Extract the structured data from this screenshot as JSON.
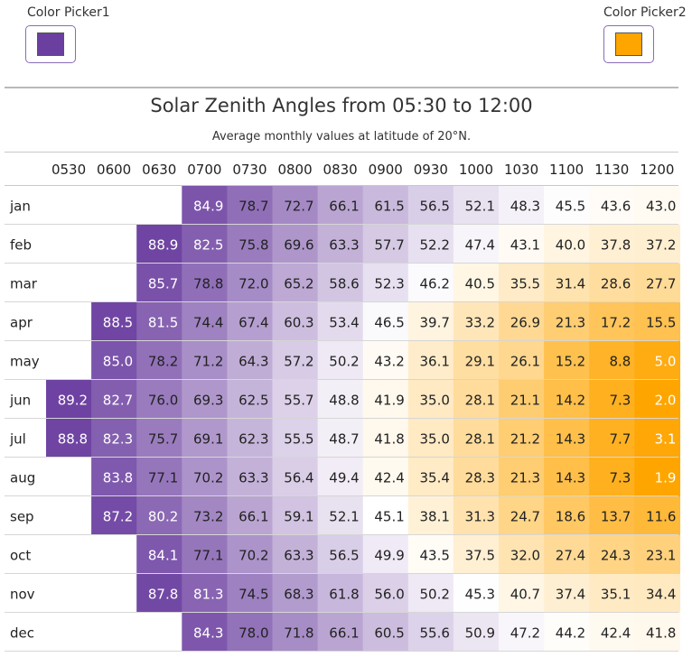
{
  "pickers": {
    "picker1": {
      "label": "Color Picker1",
      "color": "#6b3fa0"
    },
    "picker2": {
      "label": "Color Picker2",
      "color": "#ffa500"
    }
  },
  "chart_data": {
    "type": "heatmap",
    "title": "Solar Zenith Angles from 05:30 to 12:00",
    "subtitle": "Average monthly values at latitude of 20°N.",
    "columns": [
      "0530",
      "0600",
      "0630",
      "0700",
      "0730",
      "0800",
      "0830",
      "0900",
      "0930",
      "1000",
      "1030",
      "1100",
      "1130",
      "1200"
    ],
    "rows": [
      "jan",
      "feb",
      "mar",
      "apr",
      "may",
      "jun",
      "jul",
      "aug",
      "sep",
      "oct",
      "nov",
      "dec"
    ],
    "values": [
      [
        null,
        null,
        null,
        84.9,
        78.7,
        72.7,
        66.1,
        61.5,
        56.5,
        52.1,
        48.3,
        45.5,
        43.6,
        43.0
      ],
      [
        null,
        null,
        88.9,
        82.5,
        75.8,
        69.6,
        63.3,
        57.7,
        52.2,
        47.4,
        43.1,
        40.0,
        37.8,
        37.2
      ],
      [
        null,
        null,
        85.7,
        78.8,
        72.0,
        65.2,
        58.6,
        52.3,
        46.2,
        40.5,
        35.5,
        31.4,
        28.6,
        27.7
      ],
      [
        null,
        88.5,
        81.5,
        74.4,
        67.4,
        60.3,
        53.4,
        46.5,
        39.7,
        33.2,
        26.9,
        21.3,
        17.2,
        15.5
      ],
      [
        null,
        85.0,
        78.2,
        71.2,
        64.3,
        57.2,
        50.2,
        43.2,
        36.1,
        29.1,
        26.1,
        15.2,
        8.8,
        5.0
      ],
      [
        89.2,
        82.7,
        76.0,
        69.3,
        62.5,
        55.7,
        48.8,
        41.9,
        35.0,
        28.1,
        21.1,
        14.2,
        7.3,
        2.0
      ],
      [
        88.8,
        82.3,
        75.7,
        69.1,
        62.3,
        55.5,
        48.7,
        41.8,
        35.0,
        28.1,
        21.2,
        14.3,
        7.7,
        3.1
      ],
      [
        null,
        83.8,
        77.1,
        70.2,
        63.3,
        56.4,
        49.4,
        42.4,
        35.4,
        28.3,
        21.3,
        14.3,
        7.3,
        1.9
      ],
      [
        null,
        87.2,
        80.2,
        73.2,
        66.1,
        59.1,
        52.1,
        45.1,
        38.1,
        31.3,
        24.7,
        18.6,
        13.7,
        11.6
      ],
      [
        null,
        null,
        84.1,
        77.1,
        70.2,
        63.3,
        56.5,
        49.9,
        43.5,
        37.5,
        32.0,
        27.4,
        24.3,
        23.1
      ],
      [
        null,
        null,
        87.8,
        81.3,
        74.5,
        68.3,
        61.8,
        56.0,
        50.2,
        45.3,
        40.7,
        37.4,
        35.1,
        34.4
      ],
      [
        null,
        null,
        null,
        84.3,
        78.0,
        71.8,
        66.1,
        60.5,
        55.6,
        50.9,
        47.2,
        44.2,
        42.4,
        41.8
      ]
    ],
    "color_scale": {
      "high": "#6b3fa0",
      "low": "#ffa500",
      "mid": "#ffffff"
    }
  }
}
